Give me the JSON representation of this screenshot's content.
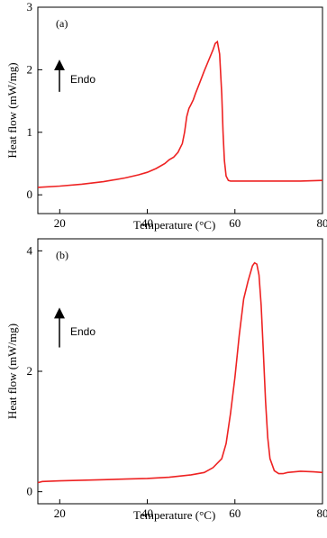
{
  "chart_data": [
    {
      "type": "line",
      "panel_label": "(a)",
      "xlabel": "Temperature (°C)",
      "ylabel": "Heat flow (mW/mg)",
      "xlim": [
        15,
        80
      ],
      "ylim": [
        -0.3,
        3
      ],
      "x_ticks": [
        20,
        40,
        60,
        80
      ],
      "y_ticks": [
        0,
        1,
        2,
        3
      ],
      "annotation": "Endo",
      "line_color": "#ee2222",
      "series": [
        {
          "x": [
            15,
            20,
            25,
            30,
            35,
            38,
            40,
            42,
            44,
            45,
            46,
            47,
            48,
            48.5,
            49,
            49.5,
            50,
            50.5,
            51,
            52,
            53,
            54,
            55,
            55.5,
            56,
            56.5,
            57,
            57.3,
            57.6,
            58,
            58.5,
            59,
            60,
            65,
            70,
            75,
            80
          ],
          "y": [
            0.12,
            0.14,
            0.17,
            0.21,
            0.27,
            0.32,
            0.36,
            0.42,
            0.5,
            0.56,
            0.6,
            0.68,
            0.82,
            1.0,
            1.25,
            1.38,
            1.45,
            1.52,
            1.62,
            1.8,
            1.98,
            2.15,
            2.32,
            2.42,
            2.45,
            2.25,
            1.6,
            1.0,
            0.55,
            0.3,
            0.23,
            0.22,
            0.22,
            0.22,
            0.22,
            0.22,
            0.23
          ]
        }
      ]
    },
    {
      "type": "line",
      "panel_label": "(b)",
      "xlabel": "Temperature (°C)",
      "ylabel": "Heat flow (mW/mg)",
      "xlim": [
        15,
        80
      ],
      "ylim": [
        -0.2,
        4.2
      ],
      "x_ticks": [
        20,
        40,
        60,
        80
      ],
      "y_ticks": [
        0,
        2,
        4
      ],
      "annotation": "Endo",
      "line_color": "#ee2222",
      "series": [
        {
          "x": [
            15,
            16,
            20,
            25,
            30,
            35,
            40,
            45,
            50,
            53,
            55,
            57,
            58,
            59,
            60,
            61,
            62,
            63,
            64,
            64.5,
            65,
            65.5,
            66,
            66.5,
            67,
            67.5,
            68,
            69,
            70,
            71,
            72,
            75,
            78,
            80
          ],
          "y": [
            0.15,
            0.17,
            0.18,
            0.19,
            0.2,
            0.21,
            0.22,
            0.24,
            0.28,
            0.32,
            0.4,
            0.55,
            0.8,
            1.3,
            1.9,
            2.6,
            3.2,
            3.5,
            3.75,
            3.8,
            3.78,
            3.6,
            3.1,
            2.3,
            1.5,
            0.9,
            0.55,
            0.35,
            0.3,
            0.3,
            0.32,
            0.34,
            0.33,
            0.32
          ]
        }
      ]
    }
  ]
}
